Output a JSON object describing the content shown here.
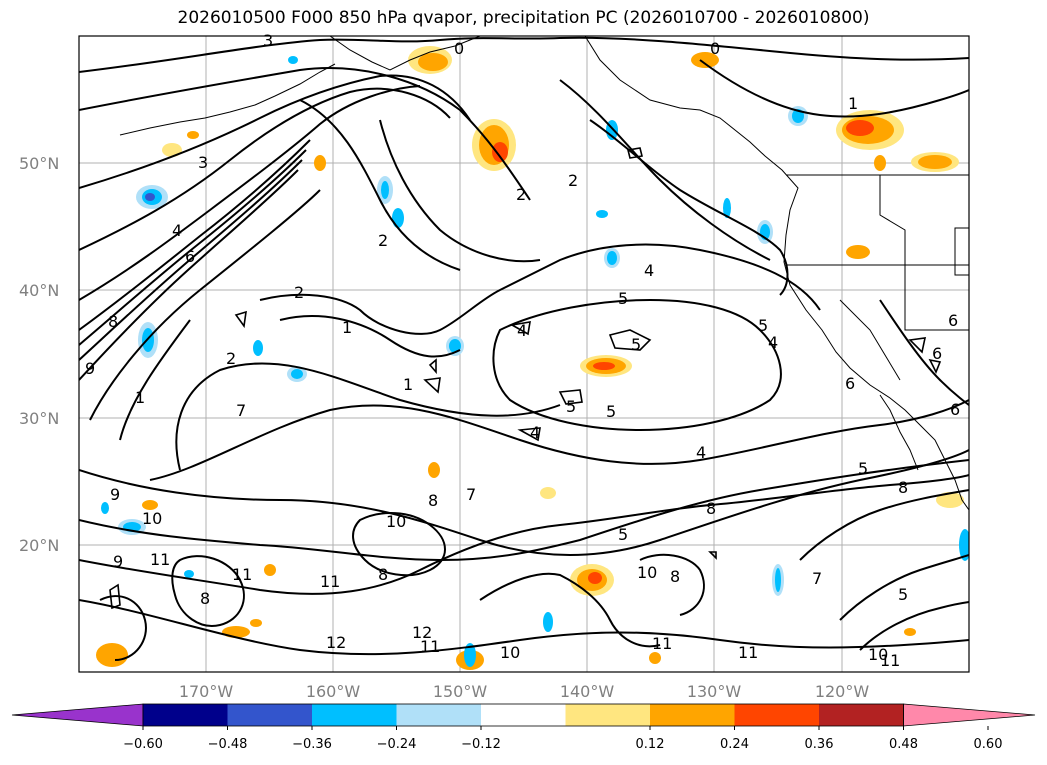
{
  "title": "2026010500 F000 850 hPa qvapor, precipitation PC (2026010700 - 2026010800)",
  "latitude_labels": [
    "50°N",
    "40°N",
    "30°N",
    "20°N"
  ],
  "longitude_labels": [
    "170°W",
    "160°W",
    "150°W",
    "140°W",
    "130°W",
    "120°W"
  ],
  "colorbar": {
    "tick_labels": [
      "−0.60",
      "−0.48",
      "−0.36",
      "−0.24",
      "−0.12",
      "0.12",
      "0.24",
      "0.36",
      "0.48",
      "0.60"
    ],
    "colors": [
      "#9933cc",
      "#00008b",
      "#3355cc",
      "#00bfff",
      "#b0e0f8",
      "#ffffff",
      "#ffe680",
      "#ffa500",
      "#ff4500",
      "#b22222",
      "#ff88aa"
    ]
  },
  "contour_labels": [
    "0",
    "1",
    "2",
    "3",
    "4",
    "5",
    "6",
    "7",
    "8",
    "9",
    "10",
    "11",
    "12"
  ],
  "highlight_colors": {
    "orange": "#ffa500",
    "red": "#ff4500",
    "yellow": "#ffe680",
    "cyan": "#00bfff",
    "lightblue": "#b0e0f8",
    "blue": "#3355cc"
  }
}
